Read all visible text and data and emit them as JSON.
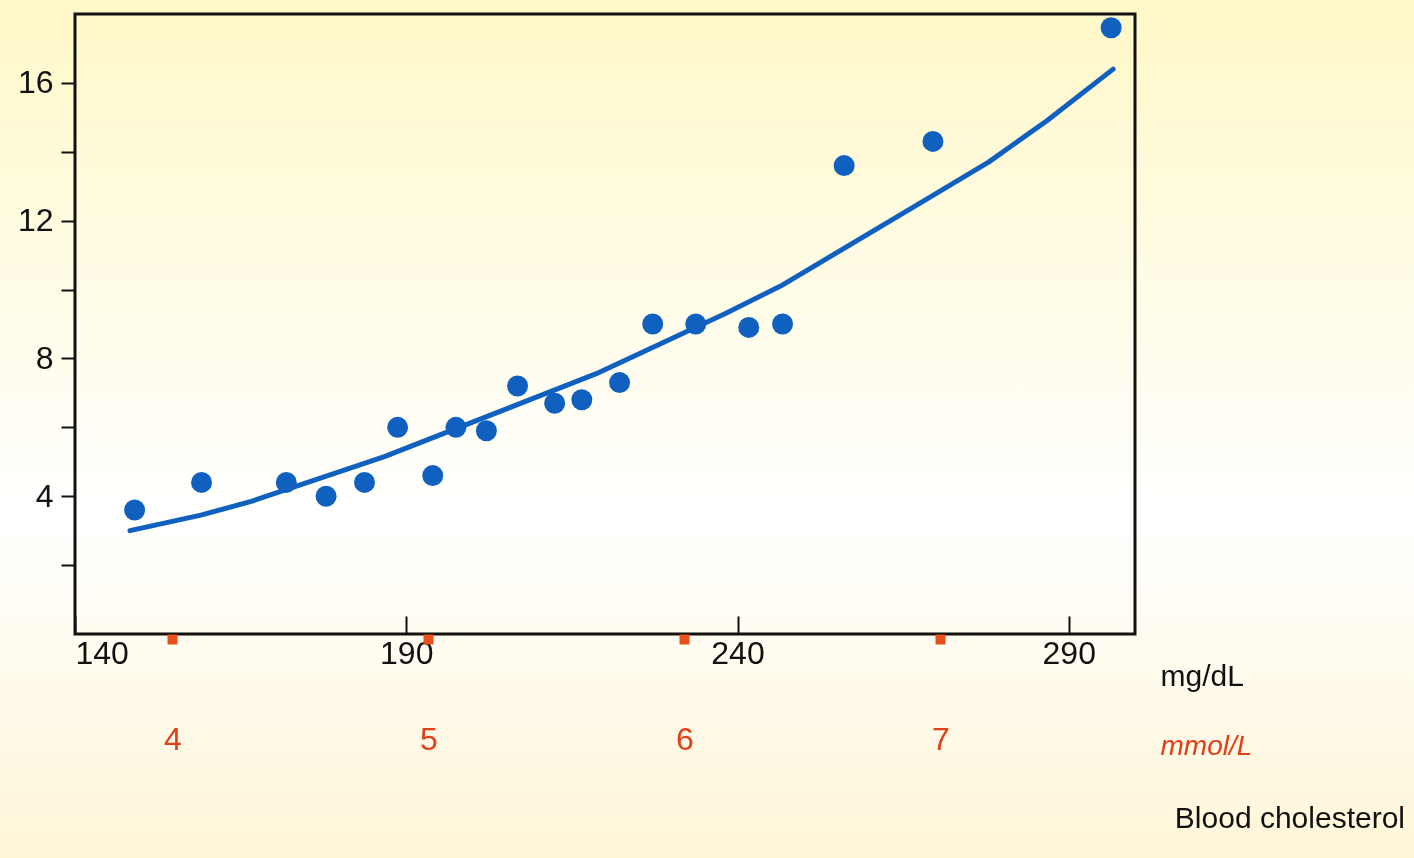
{
  "chart_data": {
    "type": "scatter",
    "xlabel": "mg/dL",
    "x2label": "mmol/L",
    "annotations": [
      "Blood cholesterol"
    ],
    "xlim": [
      140,
      300
    ],
    "xticks": [
      140,
      190,
      240,
      290
    ],
    "x2lim": [
      3.62,
      7.76
    ],
    "x2ticks": [
      4,
      5,
      6,
      7
    ],
    "ylim": [
      0,
      18
    ],
    "yticks": [
      {
        "value": 2,
        "label": null
      },
      4,
      {
        "value": 6,
        "label": null
      },
      8,
      {
        "value": 10,
        "label": null
      },
      12,
      {
        "value": 14,
        "label": null
      },
      16
    ],
    "grid": false,
    "series": [
      {
        "type": "scatter",
        "marker": "circle",
        "color": "#1060c0",
        "x": [
          149.0,
          159.1,
          171.9,
          177.9,
          183.7,
          188.7,
          194.0,
          197.5,
          202.1,
          206.8,
          212.4,
          216.5,
          222.2,
          227.2,
          233.7,
          241.7,
          246.8,
          256.1,
          269.5,
          296.4
        ],
        "values": [
          3.6,
          4.4,
          4.4,
          4.0,
          4.4,
          6.0,
          4.6,
          6.0,
          5.9,
          7.2,
          6.7,
          6.8,
          7.3,
          9.0,
          9.0,
          8.9,
          9.0,
          13.6,
          14.3,
          17.6
        ]
      },
      {
        "type": "line",
        "color": "#1060c0",
        "x": [
          148.3,
          159,
          166.6,
          186.7,
          218.6,
          238.1,
          246.5,
          266.6,
          277.9,
          286.7,
          296.7
        ],
        "values": [
          3.0,
          3.45,
          3.85,
          5.15,
          7.55,
          9.3,
          10.1,
          12.4,
          13.7,
          14.9,
          16.4
        ]
      }
    ]
  }
}
